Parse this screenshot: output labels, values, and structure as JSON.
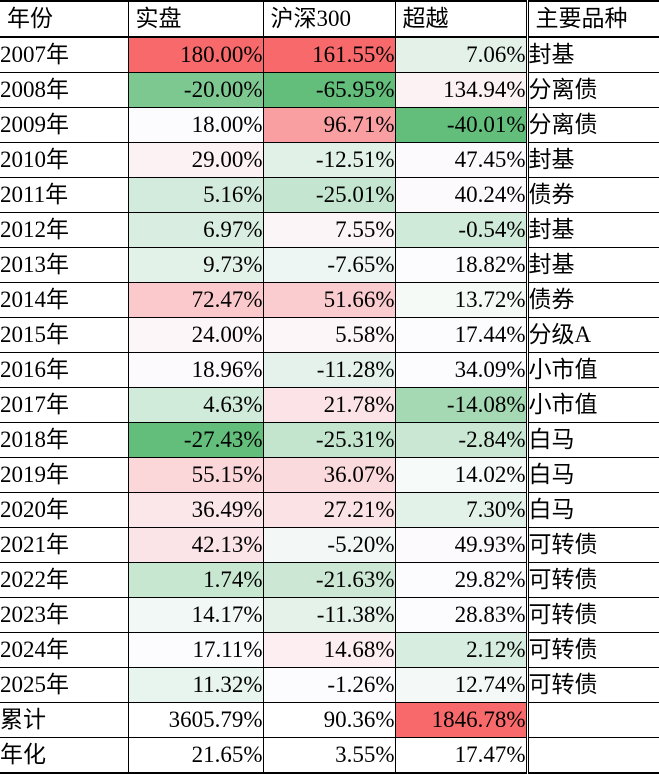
{
  "chart_data": {
    "type": "table",
    "columns": [
      "年份",
      "实盘",
      "沪深300",
      "超越",
      "主要品种"
    ],
    "rows": [
      [
        "2007年",
        "180.00%",
        "161.55%",
        "7.06%",
        "封基"
      ],
      [
        "2008年",
        "-20.00%",
        "-65.95%",
        "134.94%",
        "分离债"
      ],
      [
        "2009年",
        "18.00%",
        "96.71%",
        "-40.01%",
        "分离债"
      ],
      [
        "2010年",
        "29.00%",
        "-12.51%",
        "47.45%",
        "封基"
      ],
      [
        "2011年",
        "5.16%",
        "-25.01%",
        "40.24%",
        "债券"
      ],
      [
        "2012年",
        "6.97%",
        "7.55%",
        "-0.54%",
        "封基"
      ],
      [
        "2013年",
        "9.73%",
        "-7.65%",
        "18.82%",
        "封基"
      ],
      [
        "2014年",
        "72.47%",
        "51.66%",
        "13.72%",
        "债券"
      ],
      [
        "2015年",
        "24.00%",
        "5.58%",
        "17.44%",
        "分级A"
      ],
      [
        "2016年",
        "18.96%",
        "-11.28%",
        "34.09%",
        "小市值"
      ],
      [
        "2017年",
        "4.63%",
        "21.78%",
        "-14.08%",
        "小市值"
      ],
      [
        "2018年",
        "-27.43%",
        "-25.31%",
        "-2.84%",
        "白马"
      ],
      [
        "2019年",
        "55.15%",
        "36.07%",
        "14.02%",
        "白马"
      ],
      [
        "2020年",
        "36.49%",
        "27.21%",
        "7.30%",
        "白马"
      ],
      [
        "2021年",
        "42.13%",
        "-5.20%",
        "49.93%",
        "可转债"
      ],
      [
        "2022年",
        "1.74%",
        "-21.63%",
        "29.82%",
        "可转债"
      ],
      [
        "2023年",
        "14.17%",
        "-11.38%",
        "28.83%",
        "可转债"
      ],
      [
        "2024年",
        "17.11%",
        "14.68%",
        "2.12%",
        "可转债"
      ],
      [
        "2025年",
        "11.32%",
        "-1.26%",
        "12.74%",
        "可转债"
      ],
      [
        "累计",
        "3605.79%",
        "90.36%",
        "1846.78%",
        ""
      ],
      [
        "年化",
        "21.65%",
        "3.55%",
        "17.47%",
        ""
      ]
    ],
    "cell_bg": [
      [
        "#FFFFFF",
        "#F8696B",
        "#F8696B",
        "#E3F1E8",
        "#FFFFFF"
      ],
      [
        "#FFFFFF",
        "#7DC891",
        "#63BE7B",
        "#FCF2F4",
        "#FFFFFF"
      ],
      [
        "#FFFFFF",
        "#FCFBFE",
        "#F99FA2",
        "#63BE7B",
        "#FFFFFF"
      ],
      [
        "#FFFFFF",
        "#FCF1F3",
        "#E1F1E8",
        "#FCFAFC",
        "#FFFFFF"
      ],
      [
        "#FFFFFF",
        "#D3EBDC",
        "#C4E5CF",
        "#FCFAFD",
        "#FFFFFF"
      ],
      [
        "#FFFFFF",
        "#D9EEE1",
        "#FCF5F7",
        "#CFEAD8",
        "#FFFFFF"
      ],
      [
        "#FFFFFF",
        "#E3F2E9",
        "#EDF6F2",
        "#FCFCFE",
        "#FFFFFF"
      ],
      [
        "#FFFFFF",
        "#FBC9CC",
        "#FBCCCF",
        "#F5FAF7",
        "#FFFFFF"
      ],
      [
        "#FFFFFF",
        "#FCF6F8",
        "#FCF6F9",
        "#FCFCFF",
        "#FFFFFF"
      ],
      [
        "#FFFFFF",
        "#FCFAFD",
        "#E4F2EB",
        "#FCFBFE",
        "#FFFFFF"
      ],
      [
        "#FFFFFF",
        "#D1EBDA",
        "#FBE3E7",
        "#A5D9B4",
        "#FFFFFF"
      ],
      [
        "#FFFFFF",
        "#63BE7B",
        "#C3E5CE",
        "#C9E7D3",
        "#FFFFFF"
      ],
      [
        "#FFFFFF",
        "#FBD7DA",
        "#FBDADD",
        "#F6FAF8",
        "#FFFFFF"
      ],
      [
        "#FFFFFF",
        "#FBE6E9",
        "#FBE2E5",
        "#E2F2E9",
        "#FFFFFF"
      ],
      [
        "#FFFFFF",
        "#FBE4E7",
        "#F3F8F7",
        "#FCFAFC",
        "#FFFFFF"
      ],
      [
        "#FFFFFF",
        "#C7E7D1",
        "#CCE8D5",
        "#FCFBFE",
        "#FFFFFF"
      ],
      [
        "#FFFFFF",
        "#F2F8F6",
        "#E4F2EA",
        "#FCFBFE",
        "#FFFFFF"
      ],
      [
        "#FFFFFF",
        "#FCFCFF",
        "#FCEEF1",
        "#D7EDDF",
        "#FFFFFF"
      ],
      [
        "#FFFFFF",
        "#E8F4EE",
        "#FCFCFF",
        "#F4F9F7",
        "#FFFFFF"
      ],
      [
        "#FFFFFF",
        "#FFFFFF",
        "#FFFFFF",
        "#F8696B",
        "#FFFFFF"
      ],
      [
        "#FFFFFF",
        "#FFFFFF",
        "#FFFFFF",
        "#FFFFFF",
        "#FFFFFF"
      ]
    ],
    "color_scale": {
      "max_red": "#F8696B",
      "mid_white": "#FCFCFF",
      "min_green": "#63BE7B",
      "border": "#000000"
    },
    "layout_hints": {
      "grid": "on",
      "double_border_before_column": "主要品种",
      "numeric_align": "right",
      "text_align": "left"
    }
  }
}
